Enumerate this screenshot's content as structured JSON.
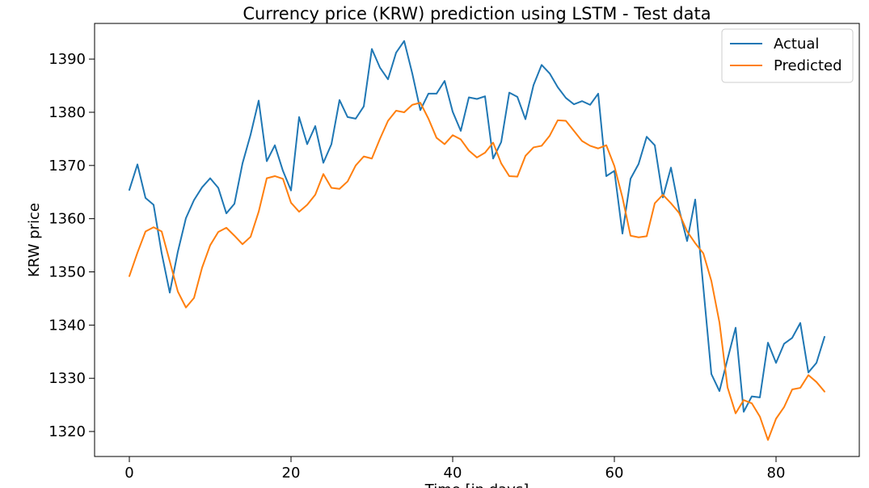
{
  "chart_data": {
    "type": "line",
    "title": "Currency price (KRW) prediction using LSTM - Test data",
    "xlabel": "Time [in days]",
    "ylabel": "KRW price",
    "xlim": [
      -4.3,
      90.3
    ],
    "ylim": [
      1315.3,
      1396.7
    ],
    "xticks": [
      0,
      20,
      40,
      60,
      80
    ],
    "yticks": [
      1320,
      1330,
      1340,
      1350,
      1360,
      1370,
      1380,
      1390
    ],
    "grid": false,
    "legend_position": "top-right",
    "x": [
      0,
      1,
      2,
      3,
      4,
      5,
      6,
      7,
      8,
      9,
      10,
      11,
      12,
      13,
      14,
      15,
      16,
      17,
      18,
      19,
      20,
      21,
      22,
      23,
      24,
      25,
      26,
      27,
      28,
      29,
      30,
      31,
      32,
      33,
      34,
      35,
      36,
      37,
      38,
      39,
      40,
      41,
      42,
      43,
      44,
      45,
      46,
      47,
      48,
      49,
      50,
      51,
      52,
      53,
      54,
      55,
      56,
      57,
      58,
      59,
      60,
      61,
      62,
      63,
      64,
      65,
      66,
      67,
      68,
      69,
      70,
      71,
      72,
      73,
      74,
      75,
      76,
      77,
      78,
      79,
      80,
      81,
      82,
      83,
      84,
      85,
      86
    ],
    "series": [
      {
        "name": "Actual",
        "color": "#1f77b4",
        "values": [
          1365.4,
          1370.2,
          1363.9,
          1362.6,
          1353.5,
          1346.1,
          1353.8,
          1360.1,
          1363.5,
          1365.9,
          1367.6,
          1365.8,
          1361.0,
          1362.8,
          1370.4,
          1375.8,
          1382.2,
          1370.8,
          1373.8,
          1369.0,
          1365.3,
          1379.1,
          1374.0,
          1377.4,
          1370.5,
          1374.0,
          1382.3,
          1379.1,
          1378.8,
          1381.1,
          1391.9,
          1388.4,
          1386.2,
          1391.2,
          1393.4,
          1387.3,
          1380.4,
          1383.5,
          1383.5,
          1385.9,
          1380.1,
          1376.5,
          1382.8,
          1382.5,
          1383.0,
          1371.3,
          1374.4,
          1383.7,
          1382.9,
          1378.7,
          1385.1,
          1388.9,
          1387.3,
          1384.7,
          1382.7,
          1381.5,
          1382.1,
          1381.4,
          1383.5,
          1368.0,
          1369.0,
          1357.2,
          1367.5,
          1370.3,
          1375.4,
          1373.8,
          1364.0,
          1369.6,
          1361.8,
          1355.8,
          1363.6,
          1347.2,
          1330.8,
          1327.6,
          1333.6,
          1339.5,
          1323.7,
          1326.6,
          1326.4,
          1336.7,
          1332.9,
          1336.5,
          1337.6,
          1340.4,
          1331.1,
          1332.9,
          1337.8
        ]
      },
      {
        "name": "Predicted",
        "color": "#ff7f0e",
        "values": [
          1349.2,
          1353.6,
          1357.6,
          1358.4,
          1357.6,
          1352.0,
          1346.3,
          1343.3,
          1345.1,
          1350.8,
          1355.0,
          1357.5,
          1358.3,
          1356.8,
          1355.2,
          1356.6,
          1361.3,
          1367.6,
          1368.0,
          1367.5,
          1363.0,
          1361.3,
          1362.6,
          1364.5,
          1368.4,
          1365.8,
          1365.6,
          1367.0,
          1370.0,
          1371.7,
          1371.3,
          1375.0,
          1378.4,
          1380.3,
          1380.0,
          1381.4,
          1381.8,
          1378.8,
          1375.2,
          1374.0,
          1375.7,
          1374.9,
          1372.8,
          1371.5,
          1372.4,
          1374.3,
          1370.4,
          1368.0,
          1367.9,
          1371.8,
          1373.4,
          1373.7,
          1375.6,
          1378.5,
          1378.4,
          1376.5,
          1374.6,
          1373.7,
          1373.2,
          1373.8,
          1369.9,
          1364.0,
          1356.8,
          1356.5,
          1356.7,
          1362.9,
          1364.5,
          1362.9,
          1361.1,
          1357.6,
          1355.4,
          1353.5,
          1348.3,
          1340.5,
          1328.3,
          1323.4,
          1325.9,
          1325.3,
          1322.8,
          1318.4,
          1322.4,
          1324.6,
          1327.9,
          1328.2,
          1330.6,
          1329.3,
          1327.5
        ]
      }
    ]
  }
}
